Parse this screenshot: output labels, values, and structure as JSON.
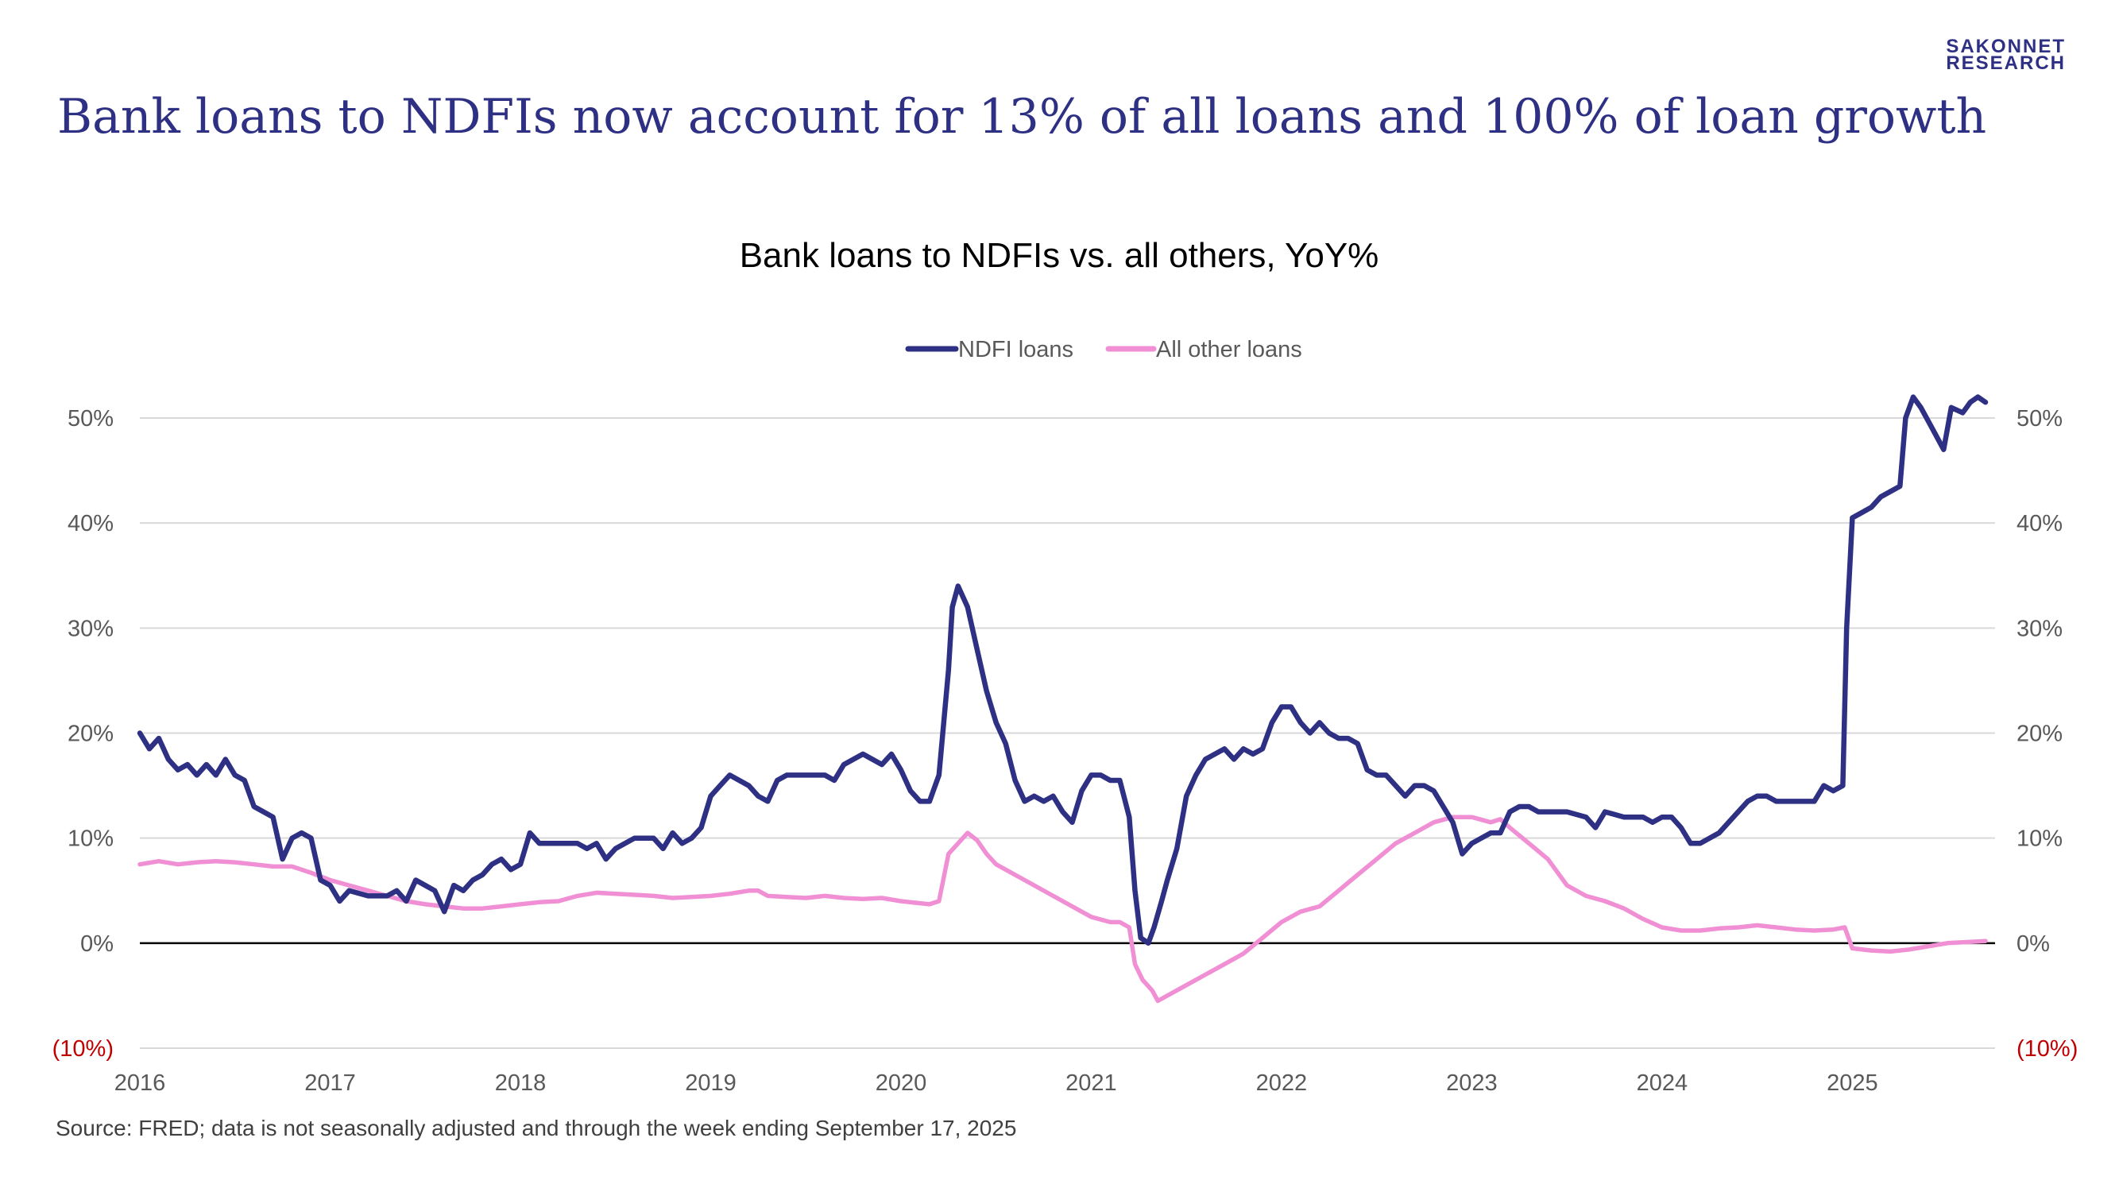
{
  "brand": {
    "line1": "SAKONNET",
    "line2": "RESEARCH"
  },
  "headline": "Bank loans to NDFIs now account for 13% of all loans and 100% of loan growth",
  "source_note": "Source: FRED; data is not seasonally adjusted and through the week ending September 17, 2025",
  "colors": {
    "ndfi": "#2e3084",
    "other": "#f08fd4",
    "title": "#2e3084",
    "negative_label": "#c00000"
  },
  "chart_data": {
    "type": "line",
    "title": "Bank loans to NDFIs vs. all others, YoY%",
    "xlabel": "",
    "ylabel": "",
    "x_range": [
      2016.0,
      2025.7
    ],
    "ylim": [
      -10,
      50
    ],
    "y_ticks": [
      50,
      40,
      30,
      20,
      10,
      0,
      -10
    ],
    "y_tick_labels": [
      "50%",
      "40%",
      "30%",
      "20%",
      "10%",
      "0%",
      "(10%)"
    ],
    "x_ticks": [
      2016,
      2017,
      2018,
      2019,
      2020,
      2021,
      2022,
      2023,
      2024,
      2025
    ],
    "x_tick_labels": [
      "2016",
      "2017",
      "2018",
      "2019",
      "2020",
      "2021",
      "2022",
      "2023",
      "2024",
      "2025"
    ],
    "grid": true,
    "legend_position": "top-center",
    "series": [
      {
        "name": "NDFI loans",
        "points": [
          [
            2016.0,
            20
          ],
          [
            2016.05,
            18.5
          ],
          [
            2016.1,
            19.5
          ],
          [
            2016.15,
            17.5
          ],
          [
            2016.2,
            16.5
          ],
          [
            2016.25,
            17
          ],
          [
            2016.3,
            16
          ],
          [
            2016.35,
            17
          ],
          [
            2016.4,
            16
          ],
          [
            2016.45,
            17.5
          ],
          [
            2016.5,
            16
          ],
          [
            2016.55,
            15.5
          ],
          [
            2016.6,
            13
          ],
          [
            2016.65,
            12.5
          ],
          [
            2016.7,
            12
          ],
          [
            2016.75,
            8
          ],
          [
            2016.8,
            10
          ],
          [
            2016.85,
            10.5
          ],
          [
            2016.9,
            10
          ],
          [
            2016.95,
            6
          ],
          [
            2017.0,
            5.5
          ],
          [
            2017.05,
            4
          ],
          [
            2017.1,
            5
          ],
          [
            2017.2,
            4.5
          ],
          [
            2017.3,
            4.5
          ],
          [
            2017.35,
            5
          ],
          [
            2017.4,
            4
          ],
          [
            2017.45,
            6
          ],
          [
            2017.5,
            5.5
          ],
          [
            2017.55,
            5
          ],
          [
            2017.6,
            3
          ],
          [
            2017.65,
            5.5
          ],
          [
            2017.7,
            5
          ],
          [
            2017.75,
            6
          ],
          [
            2017.8,
            6.5
          ],
          [
            2017.85,
            7.5
          ],
          [
            2017.9,
            8
          ],
          [
            2017.95,
            7
          ],
          [
            2018.0,
            7.5
          ],
          [
            2018.05,
            10.5
          ],
          [
            2018.1,
            9.5
          ],
          [
            2018.2,
            9.5
          ],
          [
            2018.3,
            9.5
          ],
          [
            2018.35,
            9
          ],
          [
            2018.4,
            9.5
          ],
          [
            2018.45,
            8
          ],
          [
            2018.5,
            9
          ],
          [
            2018.6,
            10
          ],
          [
            2018.7,
            10
          ],
          [
            2018.75,
            9
          ],
          [
            2018.8,
            10.5
          ],
          [
            2018.85,
            9.5
          ],
          [
            2018.9,
            10
          ],
          [
            2018.95,
            11
          ],
          [
            2019.0,
            14
          ],
          [
            2019.05,
            15
          ],
          [
            2019.1,
            16
          ],
          [
            2019.15,
            15.5
          ],
          [
            2019.2,
            15
          ],
          [
            2019.25,
            14
          ],
          [
            2019.3,
            13.5
          ],
          [
            2019.35,
            15.5
          ],
          [
            2019.4,
            16
          ],
          [
            2019.5,
            16
          ],
          [
            2019.6,
            16
          ],
          [
            2019.65,
            15.5
          ],
          [
            2019.7,
            17
          ],
          [
            2019.75,
            17.5
          ],
          [
            2019.8,
            18
          ],
          [
            2019.85,
            17.5
          ],
          [
            2019.9,
            17
          ],
          [
            2019.95,
            18
          ],
          [
            2020.0,
            16.5
          ],
          [
            2020.05,
            14.5
          ],
          [
            2020.1,
            13.5
          ],
          [
            2020.15,
            13.5
          ],
          [
            2020.2,
            16
          ],
          [
            2020.25,
            26
          ],
          [
            2020.27,
            32
          ],
          [
            2020.3,
            34
          ],
          [
            2020.35,
            32
          ],
          [
            2020.4,
            28
          ],
          [
            2020.45,
            24
          ],
          [
            2020.5,
            21
          ],
          [
            2020.55,
            19
          ],
          [
            2020.6,
            15.5
          ],
          [
            2020.65,
            13.5
          ],
          [
            2020.7,
            14
          ],
          [
            2020.75,
            13.5
          ],
          [
            2020.8,
            14
          ],
          [
            2020.85,
            12.5
          ],
          [
            2020.9,
            11.5
          ],
          [
            2020.95,
            14.5
          ],
          [
            2021.0,
            16
          ],
          [
            2021.05,
            16
          ],
          [
            2021.1,
            15.5
          ],
          [
            2021.15,
            15.5
          ],
          [
            2021.2,
            12
          ],
          [
            2021.23,
            5
          ],
          [
            2021.26,
            0.5
          ],
          [
            2021.3,
            0
          ],
          [
            2021.33,
            1.5
          ],
          [
            2021.37,
            4
          ],
          [
            2021.4,
            6
          ],
          [
            2021.45,
            9
          ],
          [
            2021.5,
            14
          ],
          [
            2021.55,
            16
          ],
          [
            2021.6,
            17.5
          ],
          [
            2021.7,
            18.5
          ],
          [
            2021.75,
            17.5
          ],
          [
            2021.8,
            18.5
          ],
          [
            2021.85,
            18
          ],
          [
            2021.9,
            18.5
          ],
          [
            2021.95,
            21
          ],
          [
            2022.0,
            22.5
          ],
          [
            2022.05,
            22.5
          ],
          [
            2022.1,
            21
          ],
          [
            2022.15,
            20
          ],
          [
            2022.2,
            21
          ],
          [
            2022.25,
            20
          ],
          [
            2022.3,
            19.5
          ],
          [
            2022.35,
            19.5
          ],
          [
            2022.4,
            19
          ],
          [
            2022.45,
            16.5
          ],
          [
            2022.5,
            16
          ],
          [
            2022.55,
            16
          ],
          [
            2022.6,
            15
          ],
          [
            2022.65,
            14
          ],
          [
            2022.7,
            15
          ],
          [
            2022.75,
            15
          ],
          [
            2022.8,
            14.5
          ],
          [
            2022.85,
            13
          ],
          [
            2022.9,
            11.5
          ],
          [
            2022.95,
            8.5
          ],
          [
            2023.0,
            9.5
          ],
          [
            2023.05,
            10
          ],
          [
            2023.1,
            10.5
          ],
          [
            2023.15,
            10.5
          ],
          [
            2023.2,
            12.5
          ],
          [
            2023.25,
            13
          ],
          [
            2023.3,
            13
          ],
          [
            2023.35,
            12.5
          ],
          [
            2023.4,
            12.5
          ],
          [
            2023.5,
            12.5
          ],
          [
            2023.6,
            12
          ],
          [
            2023.65,
            11
          ],
          [
            2023.7,
            12.5
          ],
          [
            2023.8,
            12
          ],
          [
            2023.9,
            12
          ],
          [
            2023.95,
            11.5
          ],
          [
            2024.0,
            12
          ],
          [
            2024.05,
            12
          ],
          [
            2024.1,
            11
          ],
          [
            2024.15,
            9.5
          ],
          [
            2024.2,
            9.5
          ],
          [
            2024.25,
            10
          ],
          [
            2024.3,
            10.5
          ],
          [
            2024.35,
            11.5
          ],
          [
            2024.4,
            12.5
          ],
          [
            2024.45,
            13.5
          ],
          [
            2024.5,
            14
          ],
          [
            2024.55,
            14
          ],
          [
            2024.6,
            13.5
          ],
          [
            2024.65,
            13.5
          ],
          [
            2024.7,
            13.5
          ],
          [
            2024.75,
            13.5
          ],
          [
            2024.8,
            13.5
          ],
          [
            2024.85,
            15
          ],
          [
            2024.9,
            14.5
          ],
          [
            2024.95,
            15
          ],
          [
            2024.97,
            30
          ],
          [
            2025.0,
            40.5
          ],
          [
            2025.05,
            41
          ],
          [
            2025.1,
            41.5
          ],
          [
            2025.15,
            42.5
          ],
          [
            2025.2,
            43
          ],
          [
            2025.25,
            43.5
          ],
          [
            2025.28,
            50
          ],
          [
            2025.32,
            52
          ],
          [
            2025.36,
            51
          ],
          [
            2025.42,
            49
          ],
          [
            2025.48,
            47
          ],
          [
            2025.52,
            51
          ],
          [
            2025.58,
            50.5
          ],
          [
            2025.62,
            51.5
          ],
          [
            2025.66,
            52
          ],
          [
            2025.7,
            51.5
          ]
        ]
      },
      {
        "name": "All other loans",
        "points": [
          [
            2016.0,
            7.5
          ],
          [
            2016.1,
            7.8
          ],
          [
            2016.2,
            7.5
          ],
          [
            2016.3,
            7.7
          ],
          [
            2016.4,
            7.8
          ],
          [
            2016.5,
            7.7
          ],
          [
            2016.6,
            7.5
          ],
          [
            2016.7,
            7.3
          ],
          [
            2016.8,
            7.3
          ],
          [
            2016.9,
            6.7
          ],
          [
            2017.0,
            6.0
          ],
          [
            2017.1,
            5.5
          ],
          [
            2017.2,
            5.0
          ],
          [
            2017.3,
            4.5
          ],
          [
            2017.4,
            4.0
          ],
          [
            2017.5,
            3.7
          ],
          [
            2017.6,
            3.5
          ],
          [
            2017.7,
            3.3
          ],
          [
            2017.8,
            3.3
          ],
          [
            2017.9,
            3.5
          ],
          [
            2018.0,
            3.7
          ],
          [
            2018.1,
            3.9
          ],
          [
            2018.2,
            4.0
          ],
          [
            2018.3,
            4.5
          ],
          [
            2018.4,
            4.8
          ],
          [
            2018.5,
            4.7
          ],
          [
            2018.6,
            4.6
          ],
          [
            2018.7,
            4.5
          ],
          [
            2018.8,
            4.3
          ],
          [
            2018.9,
            4.4
          ],
          [
            2019.0,
            4.5
          ],
          [
            2019.1,
            4.7
          ],
          [
            2019.2,
            5.0
          ],
          [
            2019.25,
            5.0
          ],
          [
            2019.3,
            4.5
          ],
          [
            2019.4,
            4.4
          ],
          [
            2019.5,
            4.3
          ],
          [
            2019.6,
            4.5
          ],
          [
            2019.7,
            4.3
          ],
          [
            2019.8,
            4.2
          ],
          [
            2019.9,
            4.3
          ],
          [
            2020.0,
            4.0
          ],
          [
            2020.1,
            3.8
          ],
          [
            2020.15,
            3.7
          ],
          [
            2020.2,
            4.0
          ],
          [
            2020.25,
            8.5
          ],
          [
            2020.3,
            9.5
          ],
          [
            2020.35,
            10.5
          ],
          [
            2020.4,
            9.8
          ],
          [
            2020.45,
            8.5
          ],
          [
            2020.5,
            7.5
          ],
          [
            2020.6,
            6.5
          ],
          [
            2020.7,
            5.5
          ],
          [
            2020.8,
            4.5
          ],
          [
            2020.9,
            3.5
          ],
          [
            2021.0,
            2.5
          ],
          [
            2021.1,
            2.0
          ],
          [
            2021.15,
            2.0
          ],
          [
            2021.2,
            1.5
          ],
          [
            2021.23,
            -2.0
          ],
          [
            2021.27,
            -3.5
          ],
          [
            2021.32,
            -4.5
          ],
          [
            2021.35,
            -5.5
          ],
          [
            2021.4,
            -5.0
          ],
          [
            2021.5,
            -4.0
          ],
          [
            2021.6,
            -3.0
          ],
          [
            2021.7,
            -2.0
          ],
          [
            2021.8,
            -1.0
          ],
          [
            2021.9,
            0.5
          ],
          [
            2022.0,
            2.0
          ],
          [
            2022.1,
            3.0
          ],
          [
            2022.2,
            3.5
          ],
          [
            2022.3,
            5.0
          ],
          [
            2022.4,
            6.5
          ],
          [
            2022.5,
            8.0
          ],
          [
            2022.6,
            9.5
          ],
          [
            2022.7,
            10.5
          ],
          [
            2022.8,
            11.5
          ],
          [
            2022.9,
            12.0
          ],
          [
            2023.0,
            12.0
          ],
          [
            2023.1,
            11.5
          ],
          [
            2023.15,
            11.8
          ],
          [
            2023.2,
            11.0
          ],
          [
            2023.3,
            9.5
          ],
          [
            2023.4,
            8.0
          ],
          [
            2023.5,
            5.5
          ],
          [
            2023.6,
            4.5
          ],
          [
            2023.7,
            4.0
          ],
          [
            2023.8,
            3.3
          ],
          [
            2023.9,
            2.3
          ],
          [
            2024.0,
            1.5
          ],
          [
            2024.1,
            1.2
          ],
          [
            2024.2,
            1.2
          ],
          [
            2024.3,
            1.4
          ],
          [
            2024.4,
            1.5
          ],
          [
            2024.5,
            1.7
          ],
          [
            2024.6,
            1.5
          ],
          [
            2024.7,
            1.3
          ],
          [
            2024.8,
            1.2
          ],
          [
            2024.9,
            1.3
          ],
          [
            2024.96,
            1.5
          ],
          [
            2025.0,
            -0.5
          ],
          [
            2025.1,
            -0.7
          ],
          [
            2025.2,
            -0.8
          ],
          [
            2025.3,
            -0.6
          ],
          [
            2025.4,
            -0.3
          ],
          [
            2025.5,
            0.0
          ],
          [
            2025.6,
            0.1
          ],
          [
            2025.7,
            0.2
          ]
        ]
      }
    ]
  }
}
